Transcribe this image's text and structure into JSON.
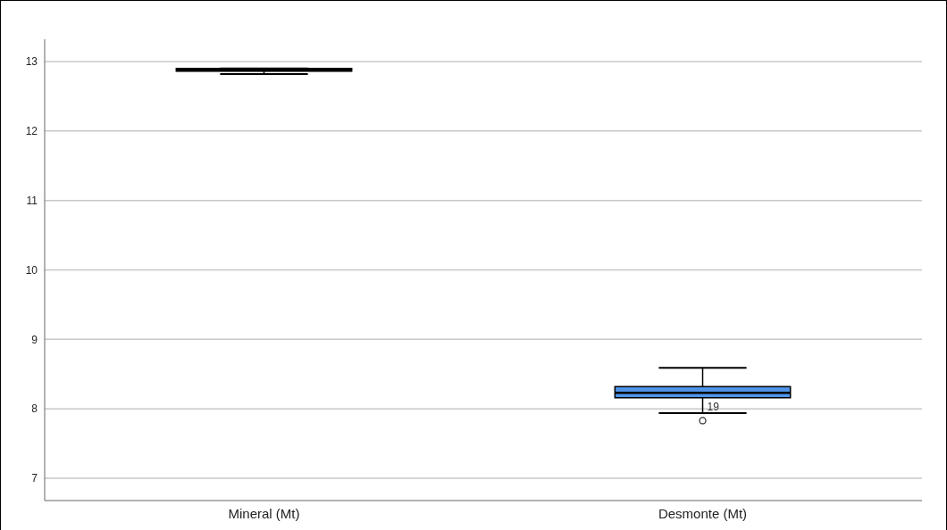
{
  "chart_data": {
    "type": "box",
    "categories": [
      "Mineral (Mt)",
      "Desmonte (Mt)"
    ],
    "colors": [
      "#4f94e8",
      "#4f94e8"
    ],
    "boxes": [
      {
        "low": 12.82,
        "q1": 12.86,
        "median": 12.88,
        "q3": 12.9,
        "high": 12.9
      },
      {
        "low": 7.94,
        "q1": 8.16,
        "median": 8.23,
        "q3": 8.32,
        "high": 8.59,
        "outliers": [
          7.83
        ]
      }
    ],
    "annotations": [
      "19"
    ],
    "ylim": [
      6.68,
      13.32
    ],
    "yticks": [
      7,
      8,
      9,
      10,
      11,
      12,
      13
    ],
    "grid": "y"
  }
}
